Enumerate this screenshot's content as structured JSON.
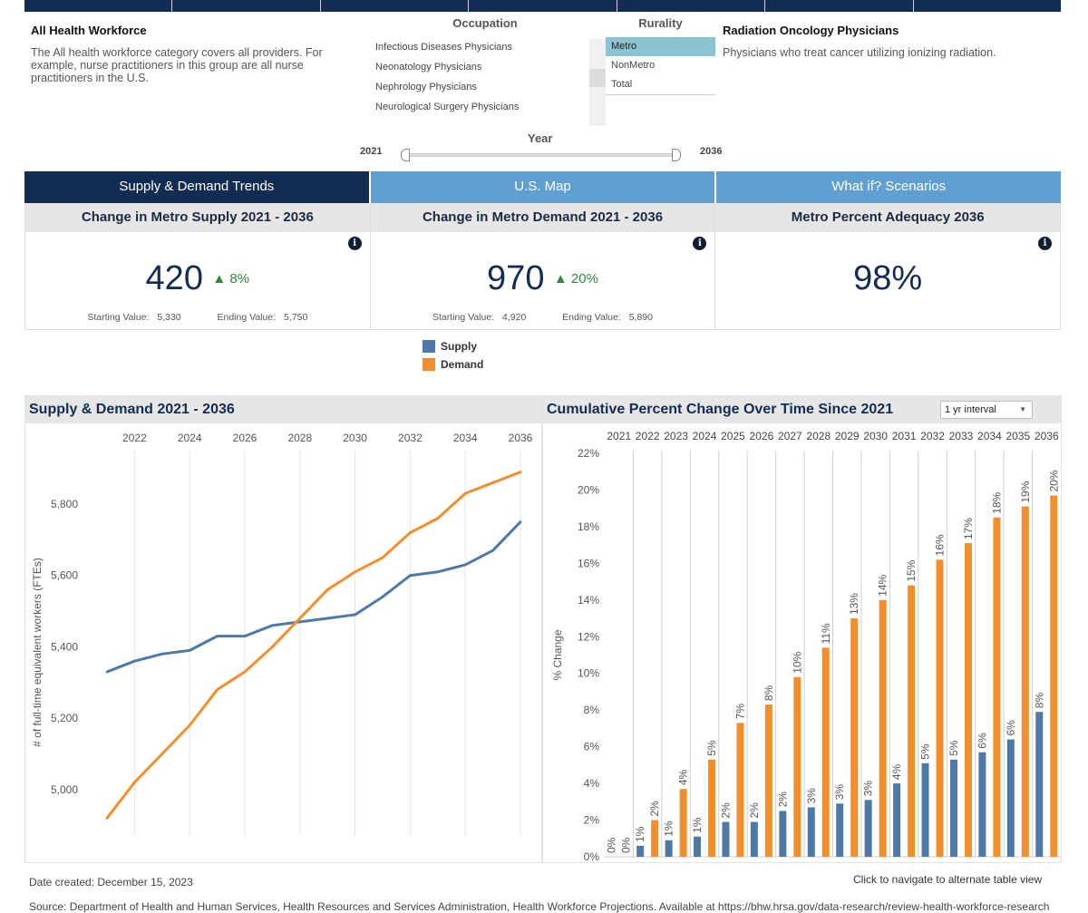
{
  "topnav": {
    "segments": 7
  },
  "description_left": {
    "title": "All Health Workforce",
    "text": "The All health workforce category covers all providers. For example, nurse practitioners in this group are all nurse practitioners in the U.S."
  },
  "occupation_filter": {
    "title": "Occupation",
    "items": [
      "Infectious Diseases Physicians",
      "Neonatology Physicians",
      "Nephrology Physicians",
      "Neurological Surgery Physicians"
    ]
  },
  "rurality_filter": {
    "title": "Rurality",
    "items": [
      "Metro",
      "NonMetro",
      "Total"
    ],
    "selected": "Metro"
  },
  "description_right": {
    "title": "Radiation Oncology Physicians",
    "text": "Physicians who treat cancer utilizing ionizing radiation."
  },
  "year_slider": {
    "title": "Year",
    "min_label": "2021",
    "max_label": "2036",
    "range_start": 2021,
    "range_end": 2036
  },
  "tabs": [
    {
      "label": "Supply & Demand Trends",
      "active": true
    },
    {
      "label": "U.S. Map",
      "active": false
    },
    {
      "label": "What if? Scenarios",
      "active": false
    }
  ],
  "kpis": [
    {
      "title": "Change in Metro Supply 2021 - 2036",
      "value": "420",
      "change": "▲ 8%",
      "start_label": "Starting Value:",
      "start_value": "5,330",
      "end_label": "Ending Value:",
      "end_value": "5,750"
    },
    {
      "title": "Change in Metro Demand 2021 - 2036",
      "value": "970",
      "change": "▲ 20%",
      "start_label": "Starting Value:",
      "start_value": "4,920",
      "end_label": "Ending Value:",
      "end_value": "5,890"
    },
    {
      "title": "Metro Percent Adequacy 2036",
      "value": "98%"
    }
  ],
  "legend": [
    {
      "label": "Supply",
      "color": "#4e79a7"
    },
    {
      "label": "Demand",
      "color": "#f28e2b"
    }
  ],
  "colors": {
    "supply": "#4e79a7",
    "demand": "#f28e2b",
    "navy": "#132c52",
    "tab_inactive": "#5fa0d0",
    "positive": "#2e8b3a"
  },
  "chart_data": [
    {
      "type": "line",
      "title": "Supply & Demand 2021 - 2036",
      "xlabel": "",
      "ylabel": "# of full-time equivalent workers (FTEs)",
      "x": [
        2021,
        2022,
        2023,
        2024,
        2025,
        2026,
        2027,
        2028,
        2029,
        2030,
        2031,
        2032,
        2033,
        2034,
        2035,
        2036
      ],
      "x_ticks": [
        "2022",
        "2024",
        "2026",
        "2028",
        "2030",
        "2032",
        "2034",
        "2036"
      ],
      "y_ticks": [
        "5,000",
        "5,200",
        "5,400",
        "5,600",
        "5,800"
      ],
      "y_tick_values": [
        5000,
        5200,
        5400,
        5600,
        5800
      ],
      "ylim": [
        4870,
        5950
      ],
      "grid": "vertical",
      "series": [
        {
          "name": "Supply",
          "values": [
            5330,
            5360,
            5380,
            5390,
            5430,
            5430,
            5460,
            5470,
            5480,
            5490,
            5540,
            5600,
            5610,
            5630,
            5670,
            5750
          ]
        },
        {
          "name": "Demand",
          "values": [
            4920,
            5020,
            5100,
            5180,
            5280,
            5330,
            5400,
            5480,
            5560,
            5610,
            5650,
            5720,
            5760,
            5830,
            5860,
            5890
          ]
        }
      ]
    },
    {
      "type": "bar",
      "title": "Cumulative Percent Change Over Time Since 2021",
      "interval_dropdown": "1 yr interval",
      "xlabel": "",
      "ylabel": "% Change",
      "categories": [
        "2021",
        "2022",
        "2023",
        "2024",
        "2025",
        "2026",
        "2027",
        "2028",
        "2029",
        "2030",
        "2031",
        "2032",
        "2033",
        "2034",
        "2035",
        "2036"
      ],
      "y_ticks": [
        "0%",
        "2%",
        "4%",
        "6%",
        "8%",
        "10%",
        "12%",
        "14%",
        "16%",
        "18%",
        "20%",
        "22%"
      ],
      "y_tick_values": [
        0,
        2,
        4,
        6,
        8,
        10,
        12,
        14,
        16,
        18,
        20,
        22
      ],
      "ylim": [
        0,
        22
      ],
      "series": [
        {
          "name": "Supply",
          "values": [
            0,
            0.6,
            0.9,
            1.1,
            1.9,
            1.9,
            2.5,
            2.7,
            2.9,
            3.1,
            4.0,
            5.1,
            5.3,
            5.7,
            6.4,
            7.9
          ],
          "labels": [
            "0%",
            "1%",
            "1%",
            "1%",
            "2%",
            "2%",
            "2%",
            "3%",
            "3%",
            "3%",
            "4%",
            "5%",
            "5%",
            "6%",
            "6%",
            "8%"
          ]
        },
        {
          "name": "Demand",
          "values": [
            0,
            2.0,
            3.7,
            5.3,
            7.3,
            8.3,
            9.8,
            11.4,
            13.0,
            14.0,
            14.8,
            16.2,
            17.1,
            18.5,
            19.1,
            19.7
          ],
          "labels": [
            "0%",
            "2%",
            "4%",
            "5%",
            "7%",
            "8%",
            "10%",
            "11%",
            "13%",
            "14%",
            "15%",
            "16%",
            "17%",
            "18%",
            "19%",
            "20%"
          ]
        }
      ]
    }
  ],
  "footer": {
    "date_created": "Date created: December 15, 2023",
    "table_link": "Click to navigate to alternate table view",
    "source": "Source: Department of Health and Human Services, Health Resources and Services Administration, Health Workforce Projections. Available at https://bhw.hrsa.gov/data-research/review-health-workforce-research"
  }
}
